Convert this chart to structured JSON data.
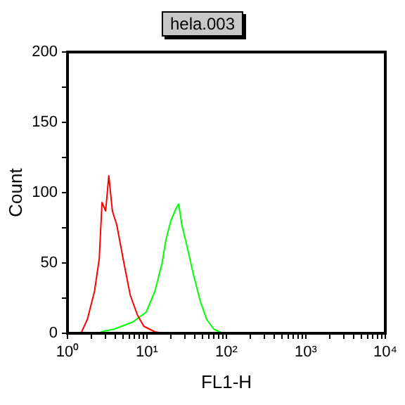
{
  "chart_data": {
    "type": "line",
    "title": "hela.003",
    "xlabel": "FL1-H",
    "ylabel": "Count",
    "log": "x",
    "marker": "none",
    "xlim": [
      1,
      10000
    ],
    "ylim": [
      0,
      200
    ],
    "xticks": [
      {
        "value": 1,
        "label": "10⁰"
      },
      {
        "value": 2,
        "label": null
      },
      {
        "value": 3,
        "label": null
      },
      {
        "value": 4,
        "label": null
      },
      {
        "value": 5,
        "label": null
      },
      {
        "value": 6,
        "label": null
      },
      {
        "value": 7,
        "label": null
      },
      {
        "value": 8,
        "label": null
      },
      {
        "value": 9,
        "label": null
      },
      {
        "value": 10,
        "label": "10¹"
      },
      {
        "value": 20,
        "label": null
      },
      {
        "value": 30,
        "label": null
      },
      {
        "value": 40,
        "label": null
      },
      {
        "value": 50,
        "label": null
      },
      {
        "value": 60,
        "label": null
      },
      {
        "value": 70,
        "label": null
      },
      {
        "value": 80,
        "label": null
      },
      {
        "value": 90,
        "label": null
      },
      {
        "value": 100,
        "label": "10²"
      },
      {
        "value": 200,
        "label": null
      },
      {
        "value": 300,
        "label": null
      },
      {
        "value": 400,
        "label": null
      },
      {
        "value": 500,
        "label": null
      },
      {
        "value": 600,
        "label": null
      },
      {
        "value": 700,
        "label": null
      },
      {
        "value": 800,
        "label": null
      },
      {
        "value": 900,
        "label": null
      },
      {
        "value": 1000,
        "label": "10³"
      },
      {
        "value": 2000,
        "label": null
      },
      {
        "value": 3000,
        "label": null
      },
      {
        "value": 4000,
        "label": null
      },
      {
        "value": 5000,
        "label": null
      },
      {
        "value": 6000,
        "label": null
      },
      {
        "value": 7000,
        "label": null
      },
      {
        "value": 8000,
        "label": null
      },
      {
        "value": 9000,
        "label": null
      },
      {
        "value": 10000,
        "label": "10⁴"
      }
    ],
    "yticks": [
      0,
      {
        "value": 25,
        "label": null
      },
      50,
      {
        "value": 75,
        "label": null
      },
      100,
      {
        "value": 125,
        "label": null
      },
      150,
      {
        "value": 175,
        "label": null
      },
      200
    ],
    "series": [
      {
        "color": "#ff0000",
        "x": [
          1.48,
          1.78,
          2.19,
          2.51,
          2.72,
          3.02,
          3.31,
          3.67,
          4.17,
          5.13,
          6.17,
          7.59,
          9.12,
          12.6,
          16.2
        ],
        "values": [
          0,
          10,
          30,
          53,
          93,
          87,
          112,
          87,
          77,
          50,
          27,
          13,
          5,
          1,
          0
        ]
      },
      {
        "color": "#00ff00",
        "x": [
          2.63,
          3.89,
          6.61,
          9.77,
          12.6,
          15.5,
          17.4,
          20.0,
          22.9,
          25.1,
          27.5,
          31.6,
          38.0,
          46.8,
          56.2,
          69.2,
          89.1
        ],
        "values": [
          1,
          3,
          8,
          15,
          30,
          50,
          67,
          80,
          88,
          92,
          77,
          63,
          43,
          23,
          10,
          3,
          0
        ]
      }
    ]
  }
}
